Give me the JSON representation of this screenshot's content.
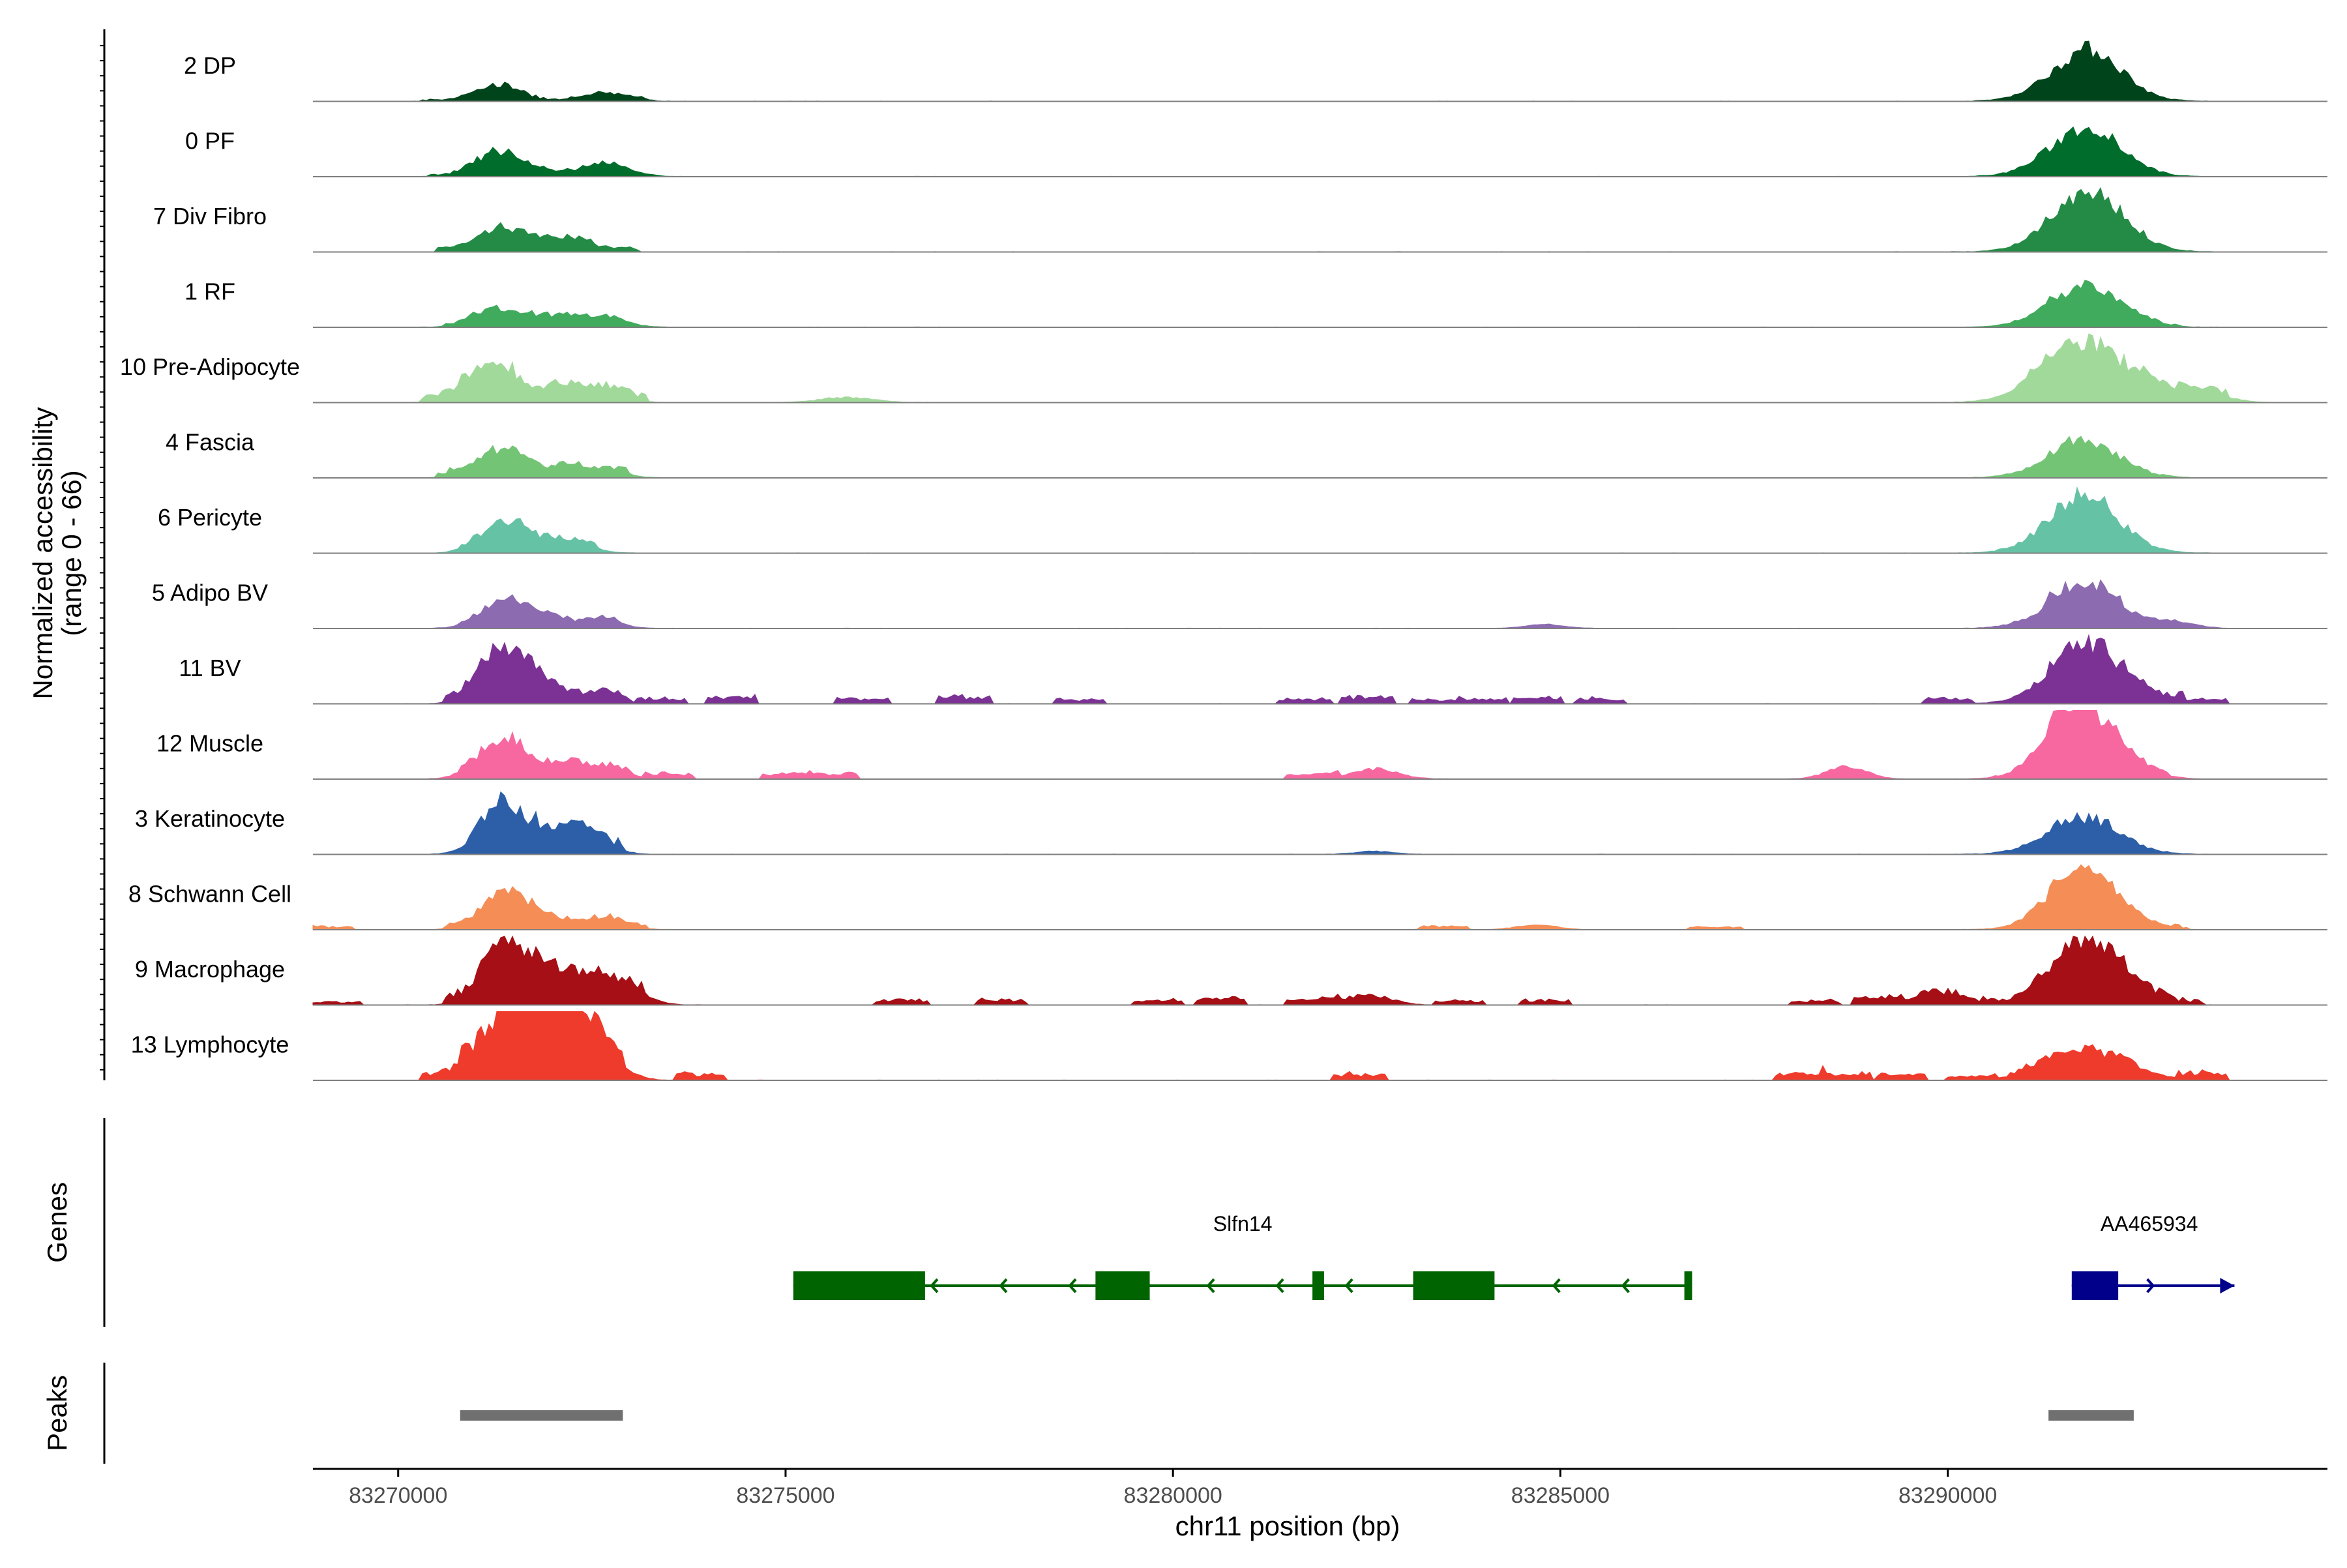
{
  "chart_data": {
    "type": "area",
    "ylabel_line1": "Normalized accessibility",
    "ylabel_line2": "(range 0 - 66)",
    "xlabel": "chr11 position (bp)",
    "xlim": [
      83268900,
      83294900
    ],
    "x_ticks": [
      83270000,
      83275000,
      83280000,
      83285000,
      83290000
    ],
    "x_tick_labels": [
      "83270000",
      "83275000",
      "83280000",
      "83285000",
      "83290000"
    ],
    "y_range": [
      0,
      66
    ],
    "genes_label": "Genes",
    "peaks_label": "Peaks",
    "tracks": [
      {
        "name": "2 DP",
        "color": "#00441b",
        "peaks": [
          [
            83271200,
            12,
            60
          ],
          [
            83271500,
            6,
            50
          ],
          [
            83272700,
            7,
            70
          ],
          [
            83291750,
            40,
            110
          ],
          [
            83291950,
            12,
            80
          ]
        ],
        "clusters": [
          [
            83270300,
            83273200,
            1.5
          ]
        ],
        "scatter": []
      },
      {
        "name": "0 PF",
        "color": "#006d2c",
        "peaks": [
          [
            83271150,
            14,
            60
          ],
          [
            83271400,
            12,
            50
          ],
          [
            83272700,
            12,
            70
          ],
          [
            83271800,
            6,
            60
          ],
          [
            83291750,
            42,
            110
          ],
          [
            83292000,
            8,
            80
          ]
        ],
        "clusters": [
          [
            83270400,
            83273000,
            2
          ]
        ],
        "scatter": []
      },
      {
        "name": "7 Div Fibro",
        "color": "#238b45",
        "peaks": [
          [
            83271150,
            12,
            60
          ],
          [
            83271450,
            14,
            50
          ],
          [
            83271900,
            10,
            60
          ],
          [
            83272300,
            8,
            60
          ],
          [
            83291750,
            44,
            110
          ],
          [
            83292050,
            12,
            100
          ]
        ],
        "clusters": [
          [
            83270500,
            83273100,
            4
          ],
          [
            83291200,
            83292600,
            3
          ]
        ],
        "scatter": []
      },
      {
        "name": "1 RF",
        "color": "#41ab5d",
        "peaks": [
          [
            83271150,
            12,
            60
          ],
          [
            83271500,
            10,
            50
          ],
          [
            83272100,
            10,
            70
          ],
          [
            83272750,
            7,
            60
          ],
          [
            83291750,
            36,
            110
          ],
          [
            83292000,
            6,
            80
          ]
        ],
        "clusters": [
          [
            83270600,
            83273000,
            3
          ],
          [
            83291200,
            83293000,
            1.5
          ]
        ],
        "scatter": []
      },
      {
        "name": "10 Pre-Adipocyte",
        "color": "#a1d99b",
        "peaks": [
          [
            83271000,
            22,
            60
          ],
          [
            83271400,
            24,
            50
          ],
          [
            83272100,
            14,
            60
          ],
          [
            83272700,
            12,
            60
          ],
          [
            83291700,
            56,
            120
          ],
          [
            83292600,
            10,
            80
          ],
          [
            83293300,
            8,
            80
          ],
          [
            83275800,
            5,
            80
          ]
        ],
        "clusters": [
          [
            83270300,
            83273200,
            6
          ],
          [
            83291000,
            83293600,
            6
          ]
        ],
        "scatter": []
      },
      {
        "name": "4 Fascia",
        "color": "#74c476",
        "peaks": [
          [
            83271150,
            14,
            60
          ],
          [
            83271500,
            18,
            50
          ],
          [
            83272150,
            9,
            60
          ],
          [
            83272700,
            6,
            60
          ],
          [
            83291750,
            34,
            110
          ]
        ],
        "clusters": [
          [
            83270500,
            83273000,
            5
          ],
          [
            83291300,
            83292300,
            3
          ]
        ],
        "scatter": []
      },
      {
        "name": "6 Pericyte",
        "color": "#66c2a4",
        "peaks": [
          [
            83271150,
            12,
            60
          ],
          [
            83271500,
            24,
            50
          ],
          [
            83272150,
            12,
            70
          ],
          [
            83291750,
            52,
            110
          ]
        ],
        "clusters": [
          [
            83270800,
            83272600,
            4
          ],
          [
            83291400,
            83292200,
            4
          ]
        ],
        "scatter": []
      },
      {
        "name": "5 Adipo BV",
        "color": "#8c6bb1",
        "peaks": [
          [
            83271200,
            14,
            60
          ],
          [
            83271500,
            16,
            50
          ],
          [
            83271900,
            10,
            60
          ],
          [
            83272600,
            8,
            60
          ],
          [
            83291750,
            40,
            110
          ],
          [
            83292900,
            6,
            70
          ],
          [
            83284800,
            4,
            60
          ]
        ],
        "clusters": [
          [
            83270800,
            83273000,
            3
          ],
          [
            83291300,
            83292300,
            5
          ]
        ],
        "scatter": []
      },
      {
        "name": "11 BV",
        "color": "#7b3294",
        "peaks": [
          [
            83271450,
            36,
            60
          ],
          [
            83271100,
            26,
            50
          ],
          [
            83271900,
            16,
            60
          ],
          [
            83272600,
            8,
            60
          ],
          [
            83291800,
            54,
            110
          ]
        ],
        "clusters": [
          [
            83270600,
            83273000,
            6
          ],
          [
            83291300,
            83292300,
            8
          ]
        ],
        "scatter": [
          [
            83273400,
            6
          ],
          [
            83274300,
            8
          ],
          [
            83276000,
            6
          ],
          [
            83277300,
            8
          ],
          [
            83278800,
            5
          ],
          [
            83281700,
            6
          ],
          [
            83282500,
            8
          ],
          [
            83283400,
            5
          ],
          [
            83284000,
            6
          ],
          [
            83284700,
            7
          ],
          [
            83285500,
            6
          ],
          [
            83290000,
            6
          ],
          [
            83292700,
            6
          ],
          [
            83293300,
            5
          ]
        ]
      },
      {
        "name": "12 Muscle",
        "color": "#f768a1",
        "peaks": [
          [
            83271150,
            20,
            60
          ],
          [
            83271450,
            26,
            50
          ],
          [
            83272100,
            12,
            60
          ],
          [
            83272700,
            10,
            60
          ],
          [
            83291750,
            56,
            110
          ],
          [
            83291550,
            22,
            60
          ],
          [
            83282600,
            10,
            70
          ],
          [
            83288700,
            12,
            60
          ]
        ],
        "clusters": [
          [
            83270800,
            83273000,
            5
          ],
          [
            83291300,
            83292300,
            8
          ]
        ],
        "scatter": [
          [
            83273500,
            6
          ],
          [
            83275000,
            6
          ],
          [
            83275600,
            7
          ],
          [
            83281800,
            5
          ],
          [
            83292500,
            5
          ]
        ]
      },
      {
        "name": "3 Keratinocyte",
        "color": "#2c5fa8",
        "peaks": [
          [
            83271200,
            24,
            60
          ],
          [
            83271450,
            26,
            50
          ],
          [
            83271900,
            16,
            60
          ],
          [
            83272400,
            18,
            70
          ],
          [
            83291750,
            34,
            110
          ],
          [
            83282600,
            3,
            60
          ]
        ],
        "clusters": [
          [
            83270900,
            83272900,
            10
          ],
          [
            83291300,
            83292200,
            3
          ]
        ],
        "scatter": []
      },
      {
        "name": "8 Schwann Cell",
        "color": "#f58d56",
        "peaks": [
          [
            83271200,
            18,
            60
          ],
          [
            83271500,
            24,
            50
          ],
          [
            83271900,
            10,
            60
          ],
          [
            83272700,
            9,
            60
          ],
          [
            83291750,
            62,
            100
          ],
          [
            83284700,
            5,
            60
          ]
        ],
        "clusters": [
          [
            83270600,
            83273200,
            4
          ],
          [
            83291300,
            83293100,
            3
          ]
        ],
        "scatter": [
          [
            83269100,
            4
          ],
          [
            83283500,
            4
          ],
          [
            83287000,
            3
          ]
        ]
      },
      {
        "name": "9 Macrophage",
        "color": "#a50f15",
        "peaks": [
          [
            83271250,
            32,
            60
          ],
          [
            83271450,
            28,
            50
          ],
          [
            83272000,
            34,
            80
          ],
          [
            83272600,
            14,
            60
          ],
          [
            83273000,
            12,
            60
          ],
          [
            83291800,
            62,
            100
          ],
          [
            83282500,
            10,
            70
          ],
          [
            83289800,
            10,
            70
          ]
        ],
        "clusters": [
          [
            83270600,
            83273200,
            8
          ],
          [
            83289600,
            83293300,
            6
          ]
        ],
        "scatter": [
          [
            83269200,
            4
          ],
          [
            83276500,
            6
          ],
          [
            83277800,
            6
          ],
          [
            83279800,
            6
          ],
          [
            83280600,
            8
          ],
          [
            83281800,
            6
          ],
          [
            83283700,
            5
          ],
          [
            83284800,
            6
          ],
          [
            83288300,
            5
          ],
          [
            83289100,
            8
          ],
          [
            83292500,
            6
          ]
        ]
      },
      {
        "name": "13 Lymphocyte",
        "color": "#ef3b2c",
        "peaks": [
          [
            83271100,
            28,
            60
          ],
          [
            83271450,
            34,
            50
          ],
          [
            83271800,
            30,
            60
          ],
          [
            83272050,
            66,
            80
          ],
          [
            83272300,
            28,
            60
          ],
          [
            83272700,
            16,
            60
          ],
          [
            83291750,
            26,
            80
          ],
          [
            83292300,
            12,
            60
          ],
          [
            83291200,
            10,
            70
          ]
        ],
        "clusters": [
          [
            83270800,
            83272900,
            12
          ],
          [
            83290800,
            83293500,
            3
          ]
        ],
        "scatter": [
          [
            83270600,
            8
          ],
          [
            83273900,
            8
          ],
          [
            83282400,
            8
          ],
          [
            83288100,
            7
          ],
          [
            83288700,
            8
          ],
          [
            83289400,
            7
          ],
          [
            83290300,
            6
          ],
          [
            83293300,
            7
          ]
        ]
      }
    ],
    "genes": [
      {
        "name": "Slfn14",
        "color": "#006400",
        "direction": "-",
        "start": 83275100,
        "end": 83286700,
        "exons": [
          [
            83275100,
            83276800
          ],
          [
            83279000,
            83279700
          ],
          [
            83281800,
            83281950
          ],
          [
            83283100,
            83284150
          ],
          [
            83286600,
            83286700
          ]
        ]
      },
      {
        "name": "AA465934",
        "color": "#00008b",
        "direction": "+",
        "start": 83291600,
        "end": 83293700,
        "exons": [
          [
            83291600,
            83292200
          ]
        ]
      }
    ],
    "peak_regions": [
      [
        83270800,
        83272900
      ],
      [
        83291300,
        83292400
      ]
    ],
    "peak_color": "#707070",
    "grid": false
  }
}
